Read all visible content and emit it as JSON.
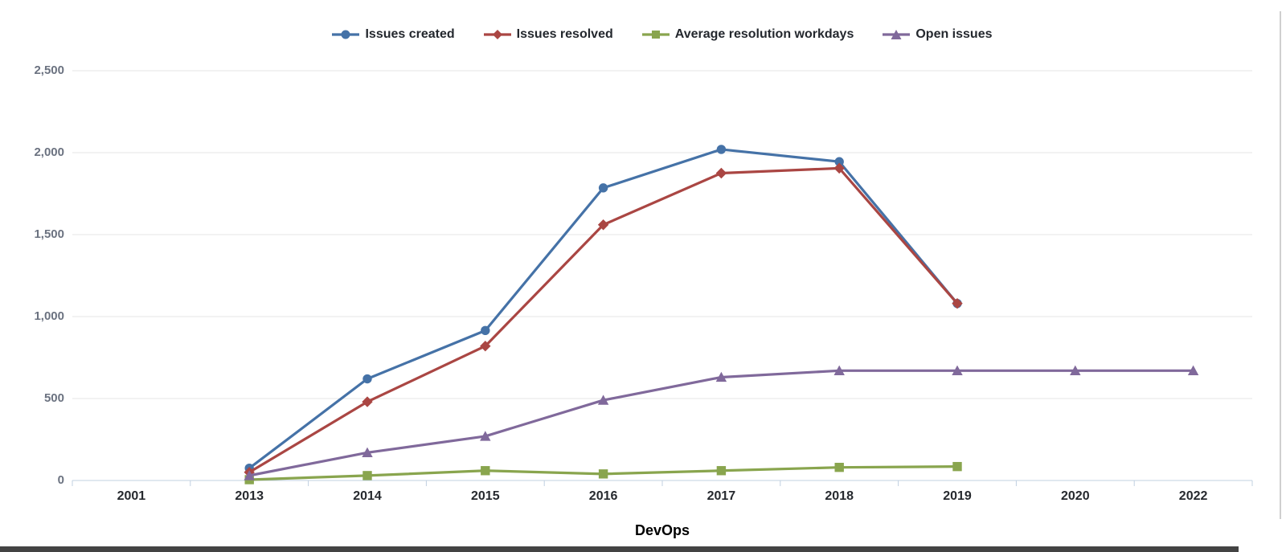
{
  "chart_data": {
    "type": "line",
    "title": "",
    "xlabel": "DevOps",
    "ylabel": "",
    "categories": [
      "2001",
      "2013",
      "2014",
      "2015",
      "2016",
      "2017",
      "2018",
      "2019",
      "2020",
      "2022"
    ],
    "ylim": [
      0,
      2500
    ],
    "ytick_values": [
      0,
      500,
      1000,
      1500,
      2000,
      2500
    ],
    "ytick_labels": [
      "0",
      "500",
      "1,000",
      "1,500",
      "2,000",
      "2,500"
    ],
    "grid": true,
    "legend_position": "top",
    "colors": {
      "grid": "#e6e6e6",
      "axis": "#c0d0e0"
    },
    "series": [
      {
        "name": "Issues created",
        "color": "#4572A7",
        "marker": "circle",
        "values": [
          null,
          75,
          620,
          915,
          1785,
          2020,
          1945,
          1080,
          null,
          null
        ]
      },
      {
        "name": "Issues resolved",
        "color": "#AA4643",
        "marker": "diamond",
        "values": [
          null,
          50,
          480,
          820,
          1560,
          1875,
          1905,
          1080,
          null,
          null
        ]
      },
      {
        "name": "Average resolution workdays",
        "color": "#89A54E",
        "marker": "square",
        "values": [
          null,
          5,
          30,
          60,
          40,
          60,
          80,
          85,
          null,
          null
        ]
      },
      {
        "name": "Open issues",
        "color": "#80699B",
        "marker": "triangle",
        "values": [
          null,
          30,
          170,
          270,
          490,
          630,
          670,
          670,
          670,
          670
        ]
      }
    ]
  }
}
